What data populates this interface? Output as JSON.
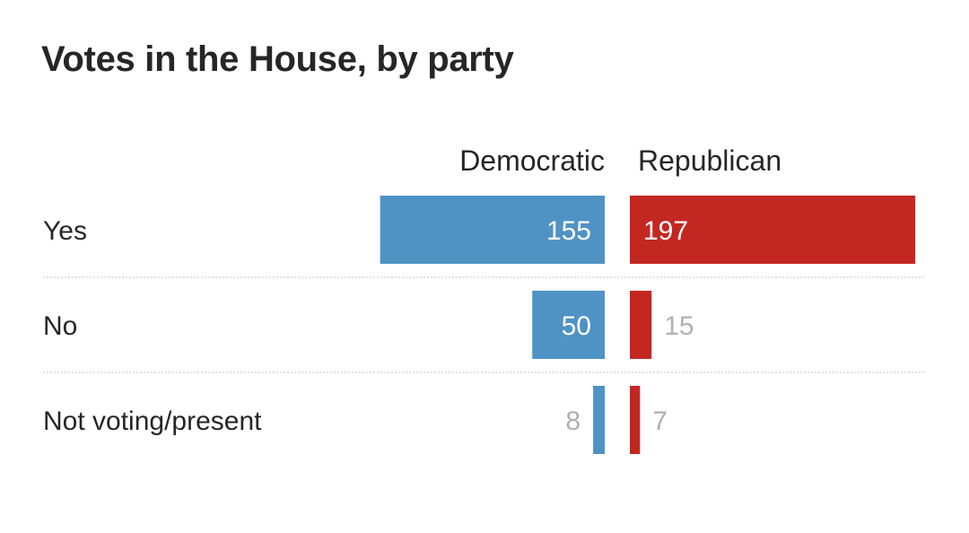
{
  "chart_data": {
    "type": "bar",
    "title": "Votes in the House, by party",
    "categories": [
      "Yes",
      "No",
      "Not voting/present"
    ],
    "series": [
      {
        "name": "Democratic",
        "values": [
          155,
          50,
          8
        ]
      },
      {
        "name": "Republican",
        "values": [
          197,
          15,
          7
        ]
      }
    ],
    "xlim": [
      0,
      200
    ],
    "grid": false,
    "legend": "top"
  },
  "colors": {
    "democratic": "#4f93c4",
    "republican": "#c32722",
    "label_inside": "#ffffff",
    "label_outside": "#b0b0b0",
    "category_text": "#262626",
    "divider": "#cfcfcf"
  }
}
